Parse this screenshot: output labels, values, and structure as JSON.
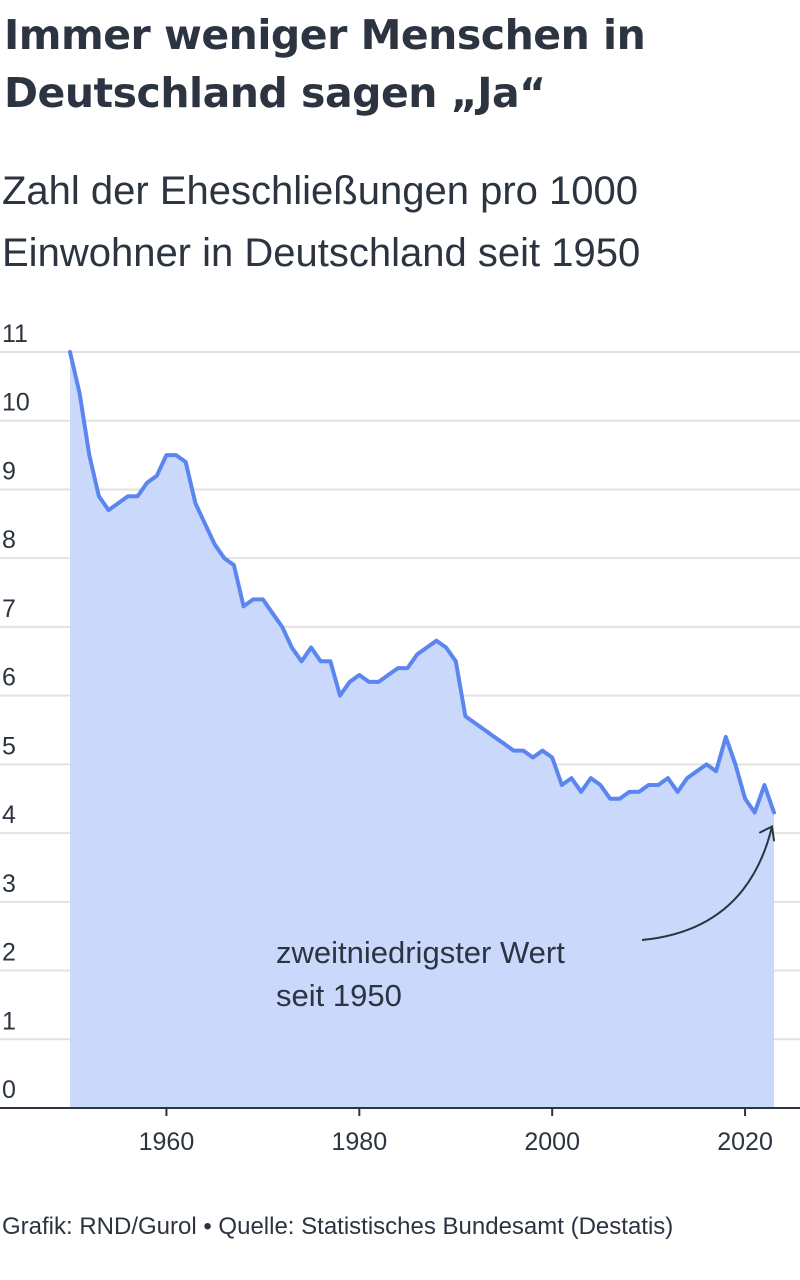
{
  "title": "Immer weniger Menschen in Deutschland sagen „Ja“",
  "subtitle": "Zahl der Eheschließungen pro 1000 Einwohner in Deutschland seit 1950",
  "source": "Grafik: RND/Gurol • Quelle: Statistisches Bundesamt (Destatis)",
  "colors": {
    "line": "#5b86f0",
    "area": "#cad9fb",
    "grid": "#e2e2e2",
    "axis": "#2b3440"
  },
  "chart_data": {
    "type": "area",
    "title": "Immer weniger Menschen in Deutschland sagen „Ja“",
    "subtitle": "Zahl der Eheschließungen pro 1000 Einwohner in Deutschland seit 1950",
    "xlabel": "",
    "ylabel": "",
    "xlim": [
      1950,
      2023
    ],
    "ylim": [
      0,
      11
    ],
    "grid": true,
    "xticks": [
      1960,
      1980,
      2000,
      2020
    ],
    "yticks": [
      0,
      1,
      2,
      3,
      4,
      5,
      6,
      7,
      8,
      9,
      10,
      11
    ],
    "series": [
      {
        "x": [
          1950,
          1951,
          1952,
          1953,
          1954,
          1955,
          1956,
          1957,
          1958,
          1959,
          1960,
          1961,
          1962,
          1963,
          1964,
          1965,
          1966,
          1967,
          1968,
          1969,
          1970,
          1971,
          1972,
          1973,
          1974,
          1975,
          1976,
          1977,
          1978,
          1979,
          1980,
          1981,
          1982,
          1983,
          1984,
          1985,
          1986,
          1987,
          1988,
          1989,
          1990,
          1991,
          1992,
          1993,
          1994,
          1995,
          1996,
          1997,
          1998,
          1999,
          2000,
          2001,
          2002,
          2003,
          2004,
          2005,
          2006,
          2007,
          2008,
          2009,
          2010,
          2011,
          2012,
          2013,
          2014,
          2015,
          2016,
          2017,
          2018,
          2019,
          2020,
          2021,
          2022,
          2023
        ],
        "values": [
          11.0,
          10.4,
          9.5,
          8.9,
          8.7,
          8.8,
          8.9,
          8.9,
          9.1,
          9.2,
          9.5,
          9.5,
          9.4,
          8.8,
          8.5,
          8.2,
          8.0,
          7.9,
          7.3,
          7.4,
          7.4,
          7.2,
          7.0,
          6.7,
          6.5,
          6.7,
          6.5,
          6.5,
          6.0,
          6.2,
          6.3,
          6.2,
          6.2,
          6.3,
          6.4,
          6.4,
          6.6,
          6.7,
          6.8,
          6.7,
          6.5,
          5.7,
          5.6,
          5.5,
          5.4,
          5.3,
          5.2,
          5.2,
          5.1,
          5.2,
          5.1,
          4.7,
          4.8,
          4.6,
          4.8,
          4.7,
          4.5,
          4.5,
          4.6,
          4.6,
          4.7,
          4.7,
          4.8,
          4.6,
          4.8,
          4.9,
          5.0,
          4.9,
          5.4,
          5.0,
          4.5,
          4.3,
          4.7,
          4.3
        ]
      }
    ],
    "annotations": [
      {
        "text_line1": "zweitniedrigster Wert",
        "text_line2": "seit 1950",
        "x": 2023,
        "y": 4.3
      }
    ]
  }
}
